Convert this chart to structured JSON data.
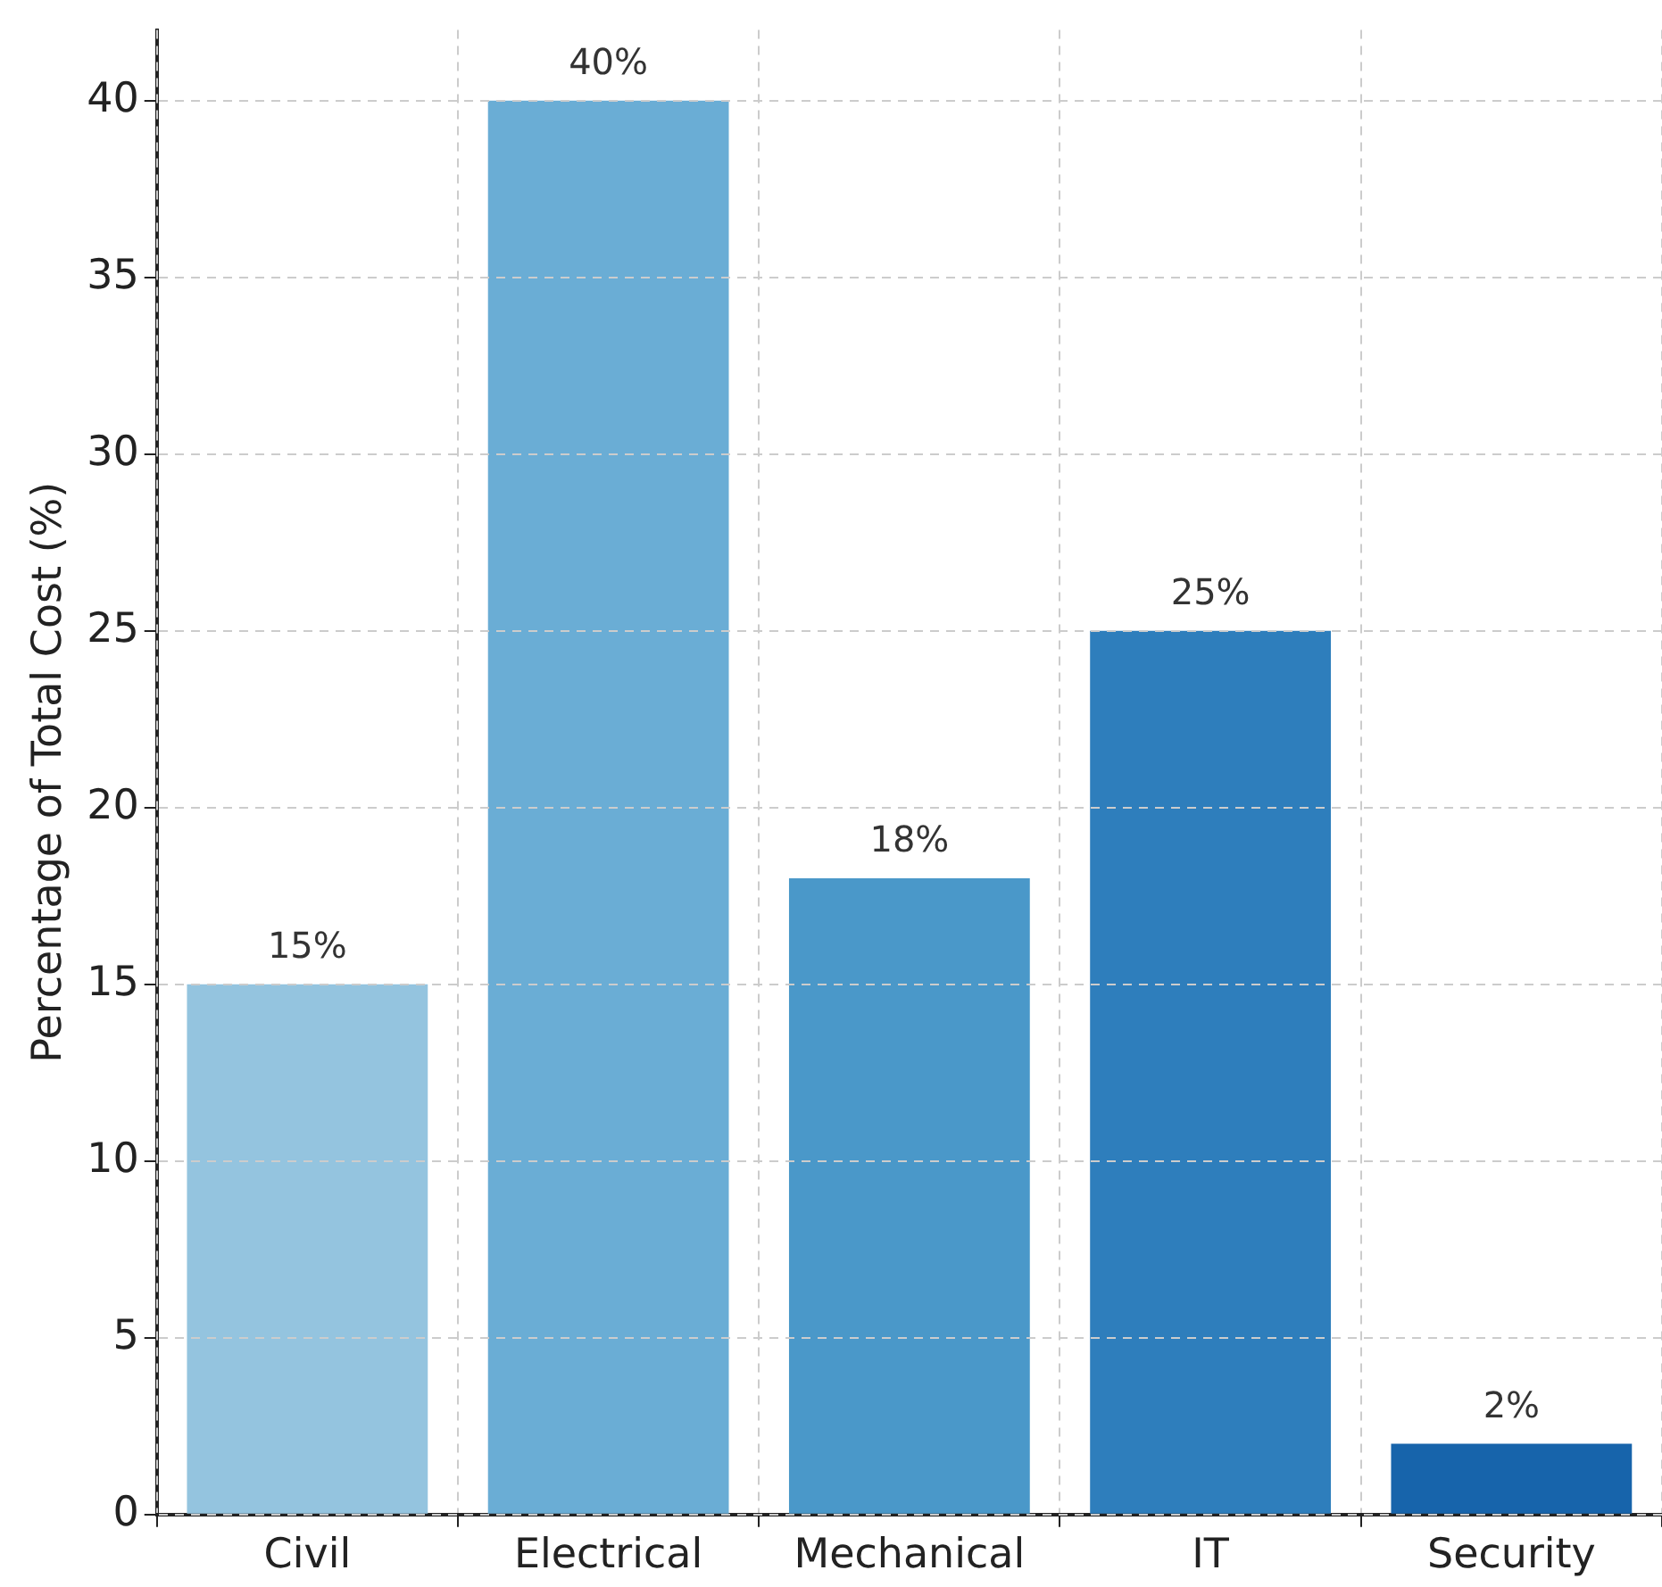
{
  "chart_data": {
    "type": "bar",
    "ylabel": "Percentage of Total Cost (%)",
    "categories": [
      "Civil",
      "Electrical",
      "Mechanical",
      "IT",
      "Security"
    ],
    "values": [
      15,
      40,
      18,
      25,
      2
    ],
    "colors": [
      "#94c4df",
      "#6aadd5",
      "#4a98c9",
      "#2e7ebc",
      "#1764ab"
    ],
    "value_labels": [
      "15%",
      "40%",
      "18%",
      "25%",
      "2%"
    ],
    "ylim": [
      0,
      42
    ],
    "yticks": [
      0,
      5,
      10,
      15,
      20,
      25,
      30,
      35,
      40
    ],
    "grid": true,
    "legend": false
  }
}
